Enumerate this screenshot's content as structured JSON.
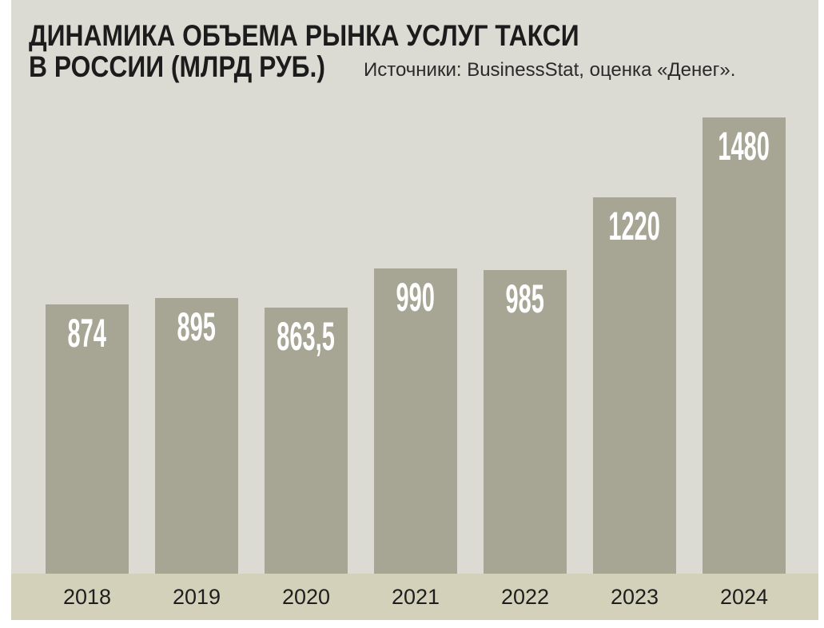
{
  "chart_data": {
    "type": "bar",
    "title_lines": [
      "ДИНАМИКА ОБЪЕМА РЫНКА УСЛУГ ТАКСИ",
      "В РОССИИ (МЛРД РУБ.)"
    ],
    "source": "Источники: BusinessStat, оценка «Денег».",
    "categories": [
      "2018",
      "2019",
      "2020",
      "2021",
      "2022",
      "2023",
      "2024"
    ],
    "values": [
      874,
      895,
      863.5,
      990,
      985,
      1220,
      1480
    ],
    "value_labels": [
      "874",
      "895",
      "863,5",
      "990",
      "985",
      "1220",
      "1480"
    ],
    "xlabel": "",
    "ylabel": "",
    "y_axis_visible": false,
    "grid": false,
    "legend": "none",
    "colors": {
      "bar": "#a7a695",
      "background": "#dcdbd3",
      "axis_band": "#d4d1bb",
      "text": "#1c1c1c",
      "value_label": "#ffffff"
    }
  }
}
